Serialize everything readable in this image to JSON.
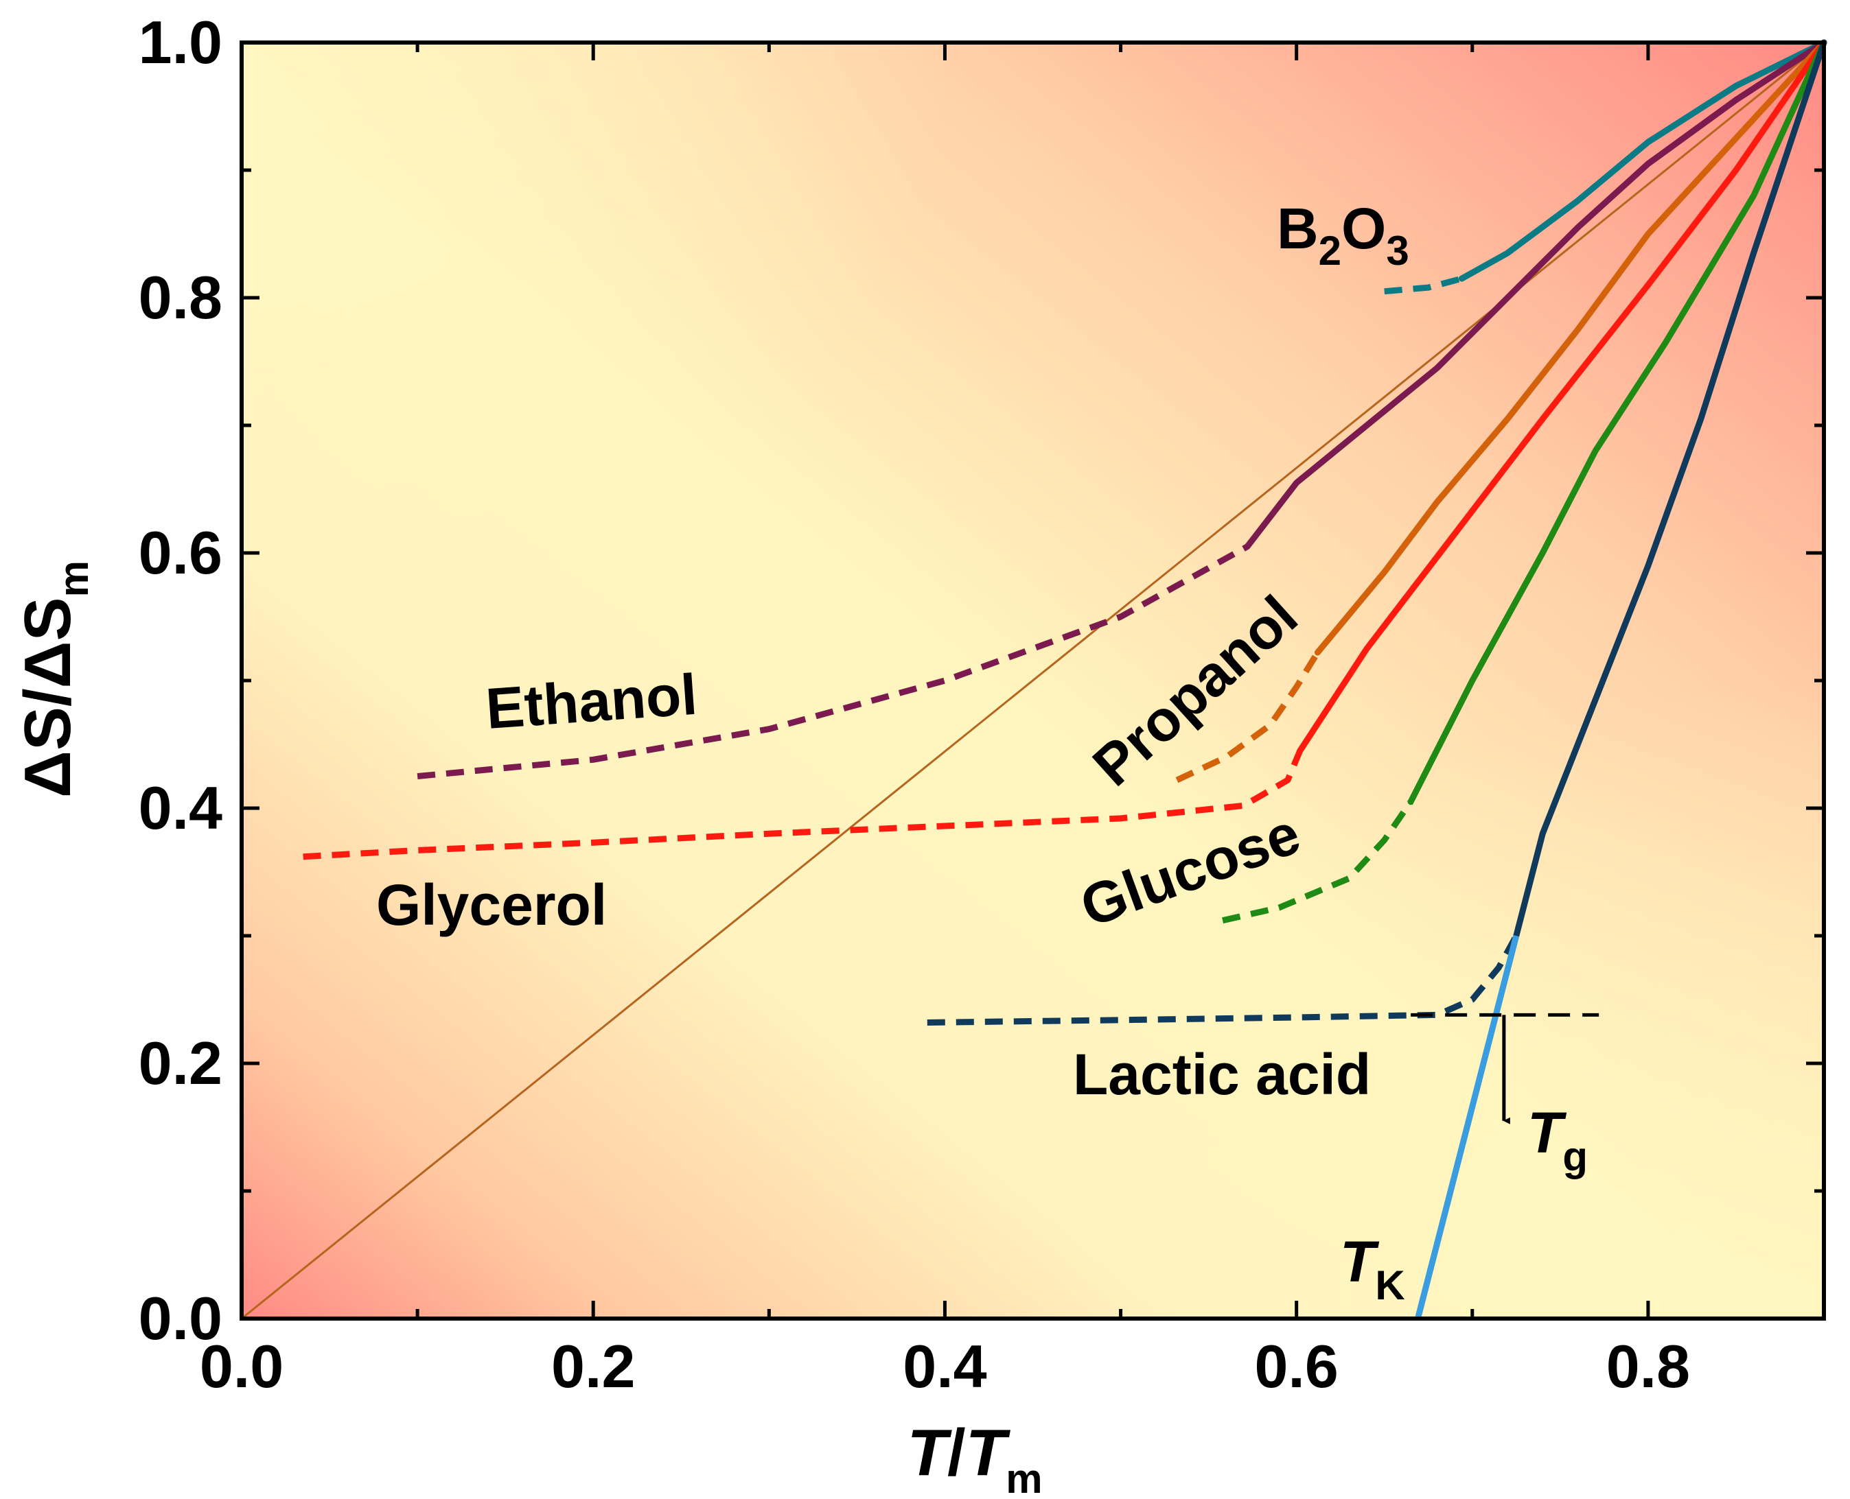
{
  "chart_data": {
    "type": "line",
    "xlabel": {
      "main": "T",
      "sep": "/",
      "main2": "T",
      "sub": "m"
    },
    "ylabel": {
      "main": "ΔS/ΔS",
      "sub": "m"
    },
    "xlim": [
      0.0,
      0.9
    ],
    "ylim": [
      0.0,
      1.0
    ],
    "x_ticks": [
      "0.0",
      "0.2",
      "0.4",
      "0.6",
      "0.8"
    ],
    "x_tick_values": [
      0.0,
      0.2,
      0.4,
      0.6,
      0.8
    ],
    "y_ticks": [
      "0.0",
      "0.2",
      "0.4",
      "0.6",
      "0.8",
      "1.0"
    ],
    "y_tick_values": [
      0.0,
      0.2,
      0.4,
      0.6,
      0.8,
      1.0
    ],
    "reference_line": {
      "name": "ideal",
      "color": "#b5651d",
      "points": [
        [
          0.0,
          0.0
        ],
        [
          0.9,
          1.0
        ]
      ]
    },
    "series": [
      {
        "name": "B2O3",
        "label_main": "B",
        "label_sub1": "2",
        "label_mid": "O",
        "label_sub2": "3",
        "color": "#0b7b86",
        "solid": [
          [
            0.694,
            0.815
          ],
          [
            0.72,
            0.835
          ],
          [
            0.76,
            0.876
          ],
          [
            0.8,
            0.922
          ],
          [
            0.85,
            0.966
          ],
          [
            0.9,
            1.0
          ]
        ],
        "dashed": [
          [
            0.65,
            0.805
          ],
          [
            0.675,
            0.808
          ],
          [
            0.694,
            0.815
          ]
        ]
      },
      {
        "name": "Ethanol",
        "label_main": "Ethanol",
        "color": "#7b1a4e",
        "solid": [
          [
            0.572,
            0.605
          ],
          [
            0.6,
            0.655
          ],
          [
            0.64,
            0.7
          ],
          [
            0.68,
            0.745
          ],
          [
            0.72,
            0.8
          ],
          [
            0.76,
            0.855
          ],
          [
            0.8,
            0.905
          ],
          [
            0.85,
            0.955
          ],
          [
            0.9,
            1.0
          ]
        ],
        "dashed": [
          [
            0.1,
            0.425
          ],
          [
            0.2,
            0.438
          ],
          [
            0.3,
            0.462
          ],
          [
            0.4,
            0.5
          ],
          [
            0.5,
            0.55
          ],
          [
            0.572,
            0.605
          ]
        ]
      },
      {
        "name": "Propanol",
        "label_main": "Propanol",
        "color": "#d4620a",
        "solid": [
          [
            0.612,
            0.522
          ],
          [
            0.65,
            0.585
          ],
          [
            0.68,
            0.64
          ],
          [
            0.72,
            0.705
          ],
          [
            0.76,
            0.775
          ],
          [
            0.8,
            0.85
          ],
          [
            0.85,
            0.925
          ],
          [
            0.9,
            1.0
          ]
        ],
        "dashed": [
          [
            0.532,
            0.422
          ],
          [
            0.56,
            0.44
          ],
          [
            0.585,
            0.465
          ],
          [
            0.6,
            0.495
          ],
          [
            0.612,
            0.522
          ]
        ]
      },
      {
        "name": "Glycerol",
        "label_main": "Glycerol",
        "color": "#ff1a10",
        "solid": [
          [
            0.602,
            0.445
          ],
          [
            0.64,
            0.525
          ],
          [
            0.69,
            0.615
          ],
          [
            0.74,
            0.705
          ],
          [
            0.8,
            0.81
          ],
          [
            0.85,
            0.9
          ],
          [
            0.9,
            1.0
          ]
        ],
        "dashed": [
          [
            0.035,
            0.362
          ],
          [
            0.1,
            0.367
          ],
          [
            0.2,
            0.373
          ],
          [
            0.3,
            0.38
          ],
          [
            0.4,
            0.386
          ],
          [
            0.5,
            0.392
          ],
          [
            0.57,
            0.402
          ],
          [
            0.595,
            0.422
          ],
          [
            0.602,
            0.445
          ]
        ]
      },
      {
        "name": "Glucose",
        "label_main": "Glucose",
        "color": "#1f8a14",
        "solid": [
          [
            0.665,
            0.405
          ],
          [
            0.7,
            0.5
          ],
          [
            0.74,
            0.6
          ],
          [
            0.77,
            0.68
          ],
          [
            0.81,
            0.765
          ],
          [
            0.86,
            0.88
          ],
          [
            0.9,
            1.0
          ]
        ],
        "dashed": [
          [
            0.558,
            0.312
          ],
          [
            0.59,
            0.322
          ],
          [
            0.63,
            0.345
          ],
          [
            0.65,
            0.375
          ],
          [
            0.665,
            0.405
          ]
        ]
      },
      {
        "name": "Lactic acid",
        "label_main": "Lactic acid",
        "color": "#103a5c",
        "solid": [
          [
            0.725,
            0.3
          ],
          [
            0.74,
            0.38
          ],
          [
            0.77,
            0.485
          ],
          [
            0.8,
            0.59
          ],
          [
            0.83,
            0.705
          ],
          [
            0.86,
            0.835
          ],
          [
            0.9,
            1.0
          ]
        ],
        "dashed": [
          [
            0.39,
            0.232
          ],
          [
            0.5,
            0.234
          ],
          [
            0.6,
            0.236
          ],
          [
            0.68,
            0.238
          ],
          [
            0.7,
            0.25
          ],
          [
            0.715,
            0.275
          ],
          [
            0.725,
            0.3
          ]
        ]
      }
    ],
    "extrapolation": {
      "name": "T_K extrapolation",
      "color": "#3a9de0",
      "points": [
        [
          0.669,
          0.0
        ],
        [
          0.725,
          0.3
        ]
      ]
    },
    "tg_line": {
      "y": 0.238,
      "x_range": [
        0.665,
        0.772
      ],
      "color": "#000000",
      "arrow_x": 0.718,
      "arrow_to_y": 0.155
    },
    "annotations": {
      "tg": {
        "main": "T",
        "sub": "g"
      },
      "tk": {
        "main": "T",
        "sub": "K"
      }
    }
  }
}
